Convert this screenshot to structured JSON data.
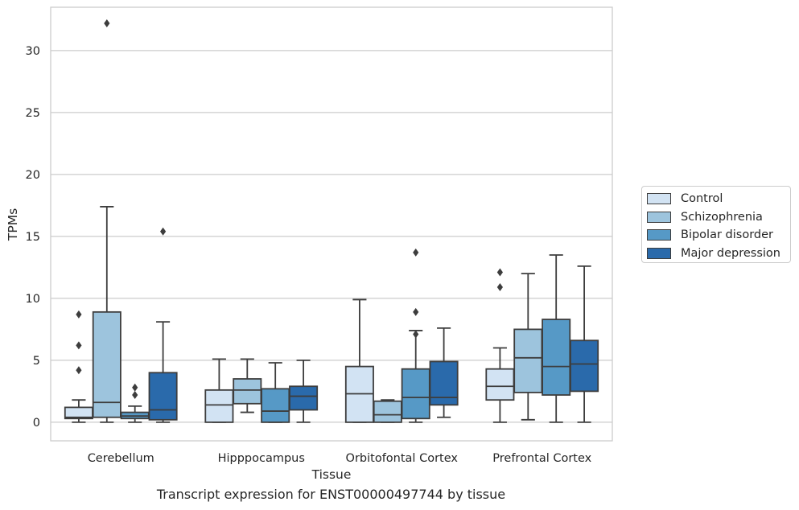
{
  "caption": "Transcript expression for ENST00000497744 by tissue",
  "chart_data": {
    "type": "box",
    "title": "",
    "xlabel": "Tissue",
    "ylabel": "TPMs",
    "ylim": [
      -1.5,
      33.5
    ],
    "yticks": [
      0,
      5,
      10,
      15,
      20,
      25,
      30
    ],
    "grid": "horizontal",
    "legend_position": "right",
    "categories": [
      "Cerebellum",
      "Hipppocampus",
      "Orbitofontal Cortex",
      "Prefrontal Cortex"
    ],
    "series": [
      {
        "name": "Control",
        "color": "#d2e3f3",
        "boxes": [
          {
            "min": 0.0,
            "q1": 0.3,
            "median": 0.4,
            "q3": 1.2,
            "max": 1.8,
            "outliers": [
              4.2,
              6.2,
              8.7
            ]
          },
          {
            "min": 0.0,
            "q1": 0.0,
            "median": 1.4,
            "q3": 2.6,
            "max": 5.1,
            "outliers": []
          },
          {
            "min": 0.0,
            "q1": 0.0,
            "median": 2.3,
            "q3": 4.5,
            "max": 9.9,
            "outliers": []
          },
          {
            "min": 0.0,
            "q1": 1.8,
            "median": 2.9,
            "q3": 4.3,
            "max": 6.0,
            "outliers": [
              10.9,
              12.1
            ]
          }
        ]
      },
      {
        "name": "Schizophrenia",
        "color": "#9dc4dd",
        "boxes": [
          {
            "min": 0.0,
            "q1": 0.4,
            "median": 1.6,
            "q3": 8.9,
            "max": 17.4,
            "outliers": [
              32.2
            ]
          },
          {
            "min": 0.8,
            "q1": 1.5,
            "median": 2.6,
            "q3": 3.5,
            "max": 5.1,
            "outliers": []
          },
          {
            "min": 0.0,
            "q1": 0.0,
            "median": 0.6,
            "q3": 1.7,
            "max": 1.8,
            "outliers": []
          },
          {
            "min": 0.2,
            "q1": 2.4,
            "median": 5.2,
            "q3": 7.5,
            "max": 12.0,
            "outliers": []
          }
        ]
      },
      {
        "name": "Bipolar disorder",
        "color": "#5699c6",
        "boxes": [
          {
            "min": 0.0,
            "q1": 0.3,
            "median": 0.5,
            "q3": 0.8,
            "max": 1.3,
            "outliers": [
              2.2,
              2.8
            ]
          },
          {
            "min": 0.0,
            "q1": 0.0,
            "median": 0.9,
            "q3": 2.7,
            "max": 4.8,
            "outliers": []
          },
          {
            "min": 0.0,
            "q1": 0.3,
            "median": 2.0,
            "q3": 4.3,
            "max": 7.4,
            "outliers": [
              7.1,
              8.9,
              13.7
            ]
          },
          {
            "min": 0.0,
            "q1": 2.2,
            "median": 4.5,
            "q3": 8.3,
            "max": 13.5,
            "outliers": []
          }
        ]
      },
      {
        "name": "Major depression",
        "color": "#2a6aab",
        "boxes": [
          {
            "min": 0.0,
            "q1": 0.2,
            "median": 1.0,
            "q3": 4.0,
            "max": 8.1,
            "outliers": [
              15.4
            ]
          },
          {
            "min": 0.0,
            "q1": 1.0,
            "median": 2.1,
            "q3": 2.9,
            "max": 5.0,
            "outliers": []
          },
          {
            "min": 0.4,
            "q1": 1.4,
            "median": 2.0,
            "q3": 4.9,
            "max": 7.6,
            "outliers": []
          },
          {
            "min": 0.0,
            "q1": 2.5,
            "median": 4.7,
            "q3": 6.6,
            "max": 12.6,
            "outliers": []
          }
        ]
      }
    ]
  }
}
